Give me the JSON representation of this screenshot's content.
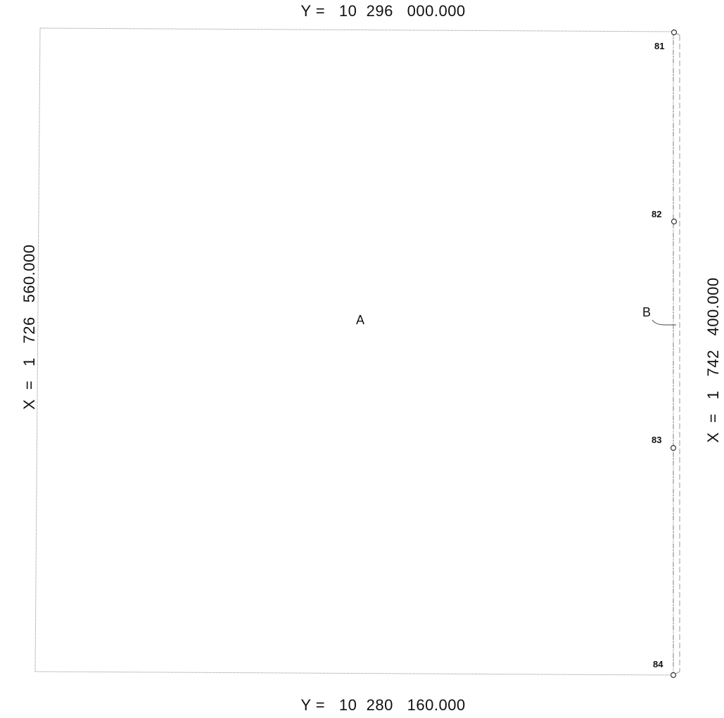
{
  "coordinates": {
    "top": "Y =   10  296   000.000",
    "bottom": "Y =   10  280   160.000",
    "left": "X  =   1   726   560.000",
    "right": "X  =   1   742   400.000"
  },
  "areas": {
    "a": "A",
    "b": "B"
  },
  "markers": [
    {
      "label": "81"
    },
    {
      "label": "82"
    },
    {
      "label": "83"
    },
    {
      "label": "84"
    }
  ],
  "colors": {
    "line": "#8a8a8a",
    "text": "#111111",
    "background": "#ffffff"
  }
}
